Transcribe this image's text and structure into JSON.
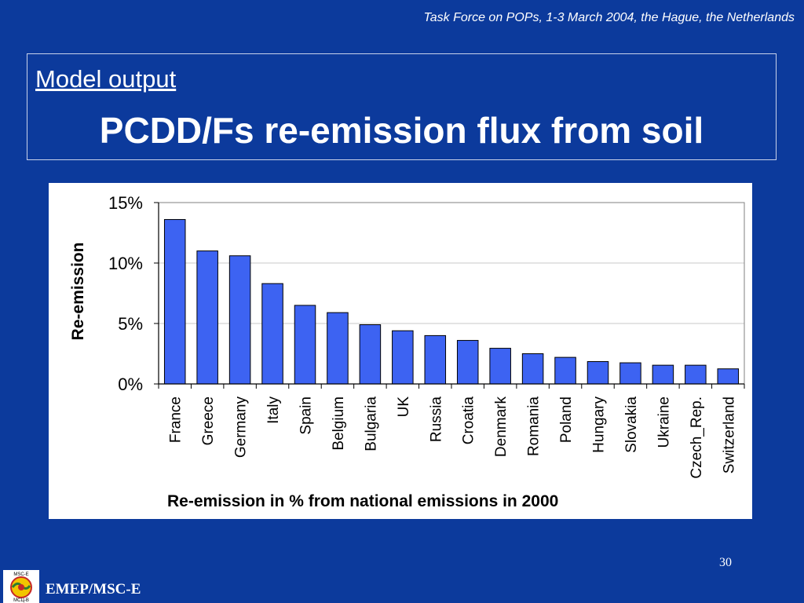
{
  "header": {
    "event_note": "Task Force on POPs, 1-3 March 2004, the Hague, the Netherlands"
  },
  "title_box": {
    "subtitle": "Model output",
    "title": "PCDD/Fs re-emission flux from soil"
  },
  "chart_data": {
    "type": "bar",
    "categories": [
      "France",
      "Greece",
      "Germany",
      "Italy",
      "Spain",
      "Belgium",
      "Bulgaria",
      "UK",
      "Russia",
      "Croatia",
      "Denmark",
      "Romania",
      "Poland",
      "Hungary",
      "Slovakia",
      "Ukraine",
      "Czech_Rep.",
      "Switzerland"
    ],
    "values": [
      13.6,
      11.0,
      10.6,
      8.3,
      6.5,
      5.9,
      4.9,
      4.4,
      4.0,
      3.6,
      2.95,
      2.5,
      2.2,
      1.85,
      1.75,
      1.55,
      1.55,
      1.25
    ],
    "ylabel": "Re-emission",
    "xlabel": "Re-emission in % from national emissions in 2000",
    "ylim": [
      0,
      15
    ],
    "yticks": [
      0,
      5,
      10,
      15
    ],
    "ytick_labels": [
      "0%",
      "5%",
      "10%",
      "15%"
    ],
    "grid": true,
    "bar_color": "#3d63f2"
  },
  "footer": {
    "page_number": "30",
    "org": "EMEP/MSC-E",
    "logo_text_top": "MSC-E",
    "logo_text_bottom": "МСЦ-В"
  }
}
